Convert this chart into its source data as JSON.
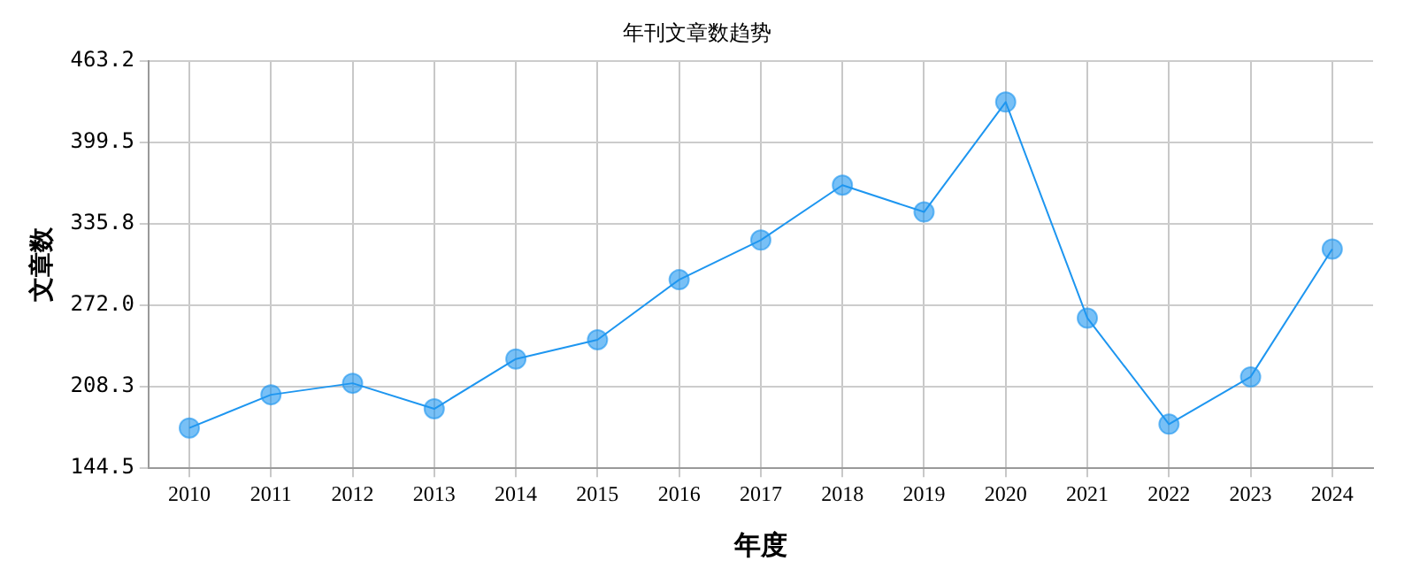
{
  "chart_data": {
    "type": "line",
    "title": "年刊文章数趋势",
    "xlabel": "年度",
    "ylabel": "文章数",
    "categories": [
      "2010",
      "2011",
      "2012",
      "2013",
      "2014",
      "2015",
      "2016",
      "2017",
      "2018",
      "2019",
      "2020",
      "2021",
      "2022",
      "2023",
      "2024"
    ],
    "series": [
      {
        "color": "#1e96f0",
        "values": [
          176,
          202,
          211,
          191,
          230,
          245,
          292,
          323,
          366,
          345,
          431,
          262,
          179,
          216,
          316
        ]
      }
    ],
    "ylim": [
      144.5,
      463.2
    ],
    "yticks": [
      144.5,
      208.3,
      {
        "value": 272,
        "label": "272.0"
      },
      335.8,
      399.5,
      463.2
    ],
    "grid": true,
    "marker": "circle",
    "line_style": "solid",
    "legend": false
  }
}
